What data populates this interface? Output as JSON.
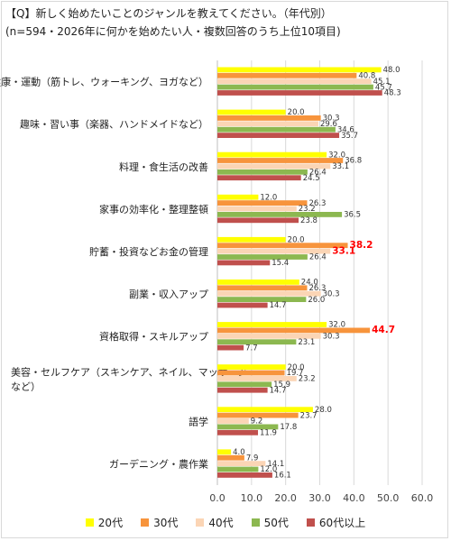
{
  "title": "【Q】新しく始めたいことのジャンルを教えてください。（年代別）",
  "subtitle": "(n=594・2026年に何かを始めたい人・複数回答のうち上位10項目)",
  "chart_data": {
    "type": "bar",
    "orientation": "horizontal",
    "categories": [
      "健康・運動（筋トレ、ウォーキング、ヨガなど）",
      "趣味・習い事（楽器、ハンドメイドなど）",
      "料理・食生活の改善",
      "家事の効率化・整理整頓",
      "貯蓄・投資などお金の管理",
      "副業・収入アップ",
      "資格取得・スキルアップ",
      "美容・セルフケア（スキンケア、ネイル、マッサージなど）",
      "語学",
      "ガーデニング・農作業"
    ],
    "category_lines": [
      [
        "健康・運動（筋トレ、ウォーキング、ヨガなど）"
      ],
      [
        "趣味・習い事（楽器、ハンドメイドなど）"
      ],
      [
        "料理・食生活の改善"
      ],
      [
        "家事の効率化・整理整頓"
      ],
      [
        "貯蓄・投資などお金の管理"
      ],
      [
        "副業・収入アップ"
      ],
      [
        "資格取得・スキルアップ"
      ],
      [
        "美容・セルフケア（スキンケア、ネイル、マッサージ",
        "など）"
      ],
      [
        "語学"
      ],
      [
        "ガーデニング・農作業"
      ]
    ],
    "series": [
      {
        "name": "20代",
        "color": "#ffff00",
        "values": [
          48.0,
          20.0,
          32.0,
          12.0,
          20.0,
          24.0,
          32.0,
          20.0,
          28.0,
          4.0
        ]
      },
      {
        "name": "30代",
        "color": "#f7943c",
        "values": [
          40.8,
          30.3,
          36.8,
          26.3,
          38.2,
          26.3,
          44.7,
          19.7,
          23.7,
          7.9
        ]
      },
      {
        "name": "40代",
        "color": "#fbd5b5",
        "values": [
          45.1,
          29.6,
          33.1,
          23.2,
          33.1,
          30.3,
          30.3,
          23.2,
          9.2,
          14.1
        ]
      },
      {
        "name": "50代",
        "color": "#8cb850",
        "values": [
          45.7,
          34.6,
          26.4,
          36.5,
          26.4,
          26.0,
          23.1,
          15.9,
          17.8,
          12.0
        ]
      },
      {
        "name": "60代以上",
        "color": "#c0504d",
        "values": [
          48.3,
          35.7,
          24.5,
          23.8,
          15.4,
          14.7,
          7.7,
          14.7,
          11.9,
          16.1
        ]
      }
    ],
    "xlim": [
      0,
      60
    ],
    "xticks": [
      "0.0",
      "10.0",
      "20.0",
      "30.0",
      "40.0",
      "50.0",
      "60.0"
    ],
    "grid": true,
    "legend_position": "bottom",
    "highlight_color": "#ff0000",
    "highlights": [
      {
        "category_index": 4,
        "series_index": 1
      },
      {
        "category_index": 4,
        "series_index": 2
      },
      {
        "category_index": 6,
        "series_index": 1
      }
    ]
  }
}
